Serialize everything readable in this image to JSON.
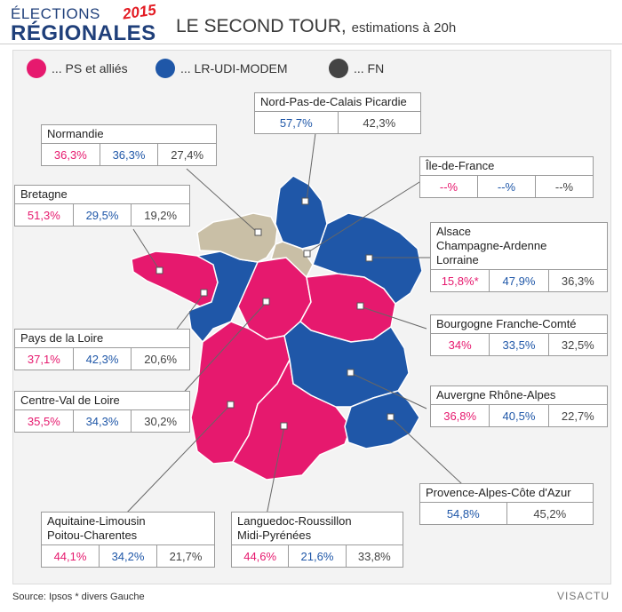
{
  "header": {
    "line1": "ÉLECTIONS",
    "line2": "RÉGIONALES",
    "year": "2015",
    "subtitle_main": "LE SECOND TOUR,",
    "subtitle_small": "estimations à 20h"
  },
  "legend": [
    {
      "label": "... PS et alliés",
      "color": "#e6196e"
    },
    {
      "label": "... LR-UDI-MODEM",
      "color": "#1f57a8"
    },
    {
      "label": "... FN",
      "color": "#444444"
    }
  ],
  "colors": {
    "ps": "#e6196e",
    "lr": "#1f57a8",
    "fn_region": "#c9bfa6",
    "idf": "#c9bfa6"
  },
  "regions": {
    "nord": {
      "name": "Nord-Pas-de-Calais Picardie",
      "values": [
        "57,7%",
        "42,3%"
      ]
    },
    "normandie": {
      "name": "Normandie",
      "values": [
        "36,3%",
        "36,3%",
        "27,4%"
      ]
    },
    "idf": {
      "name": "Île-de-France",
      "values": [
        "--%",
        "--%",
        "--%"
      ]
    },
    "bretagne": {
      "name": "Bretagne",
      "values": [
        "51,3%",
        "29,5%",
        "19,2%"
      ]
    },
    "alsace": {
      "name_l1": "Alsace",
      "name_l2": "Champagne-Ardenne",
      "name_l3": "Lorraine",
      "values": [
        "15,8%*",
        "47,9%",
        "36,3%"
      ]
    },
    "bourgogne": {
      "name": "Bourgogne Franche-Comté",
      "values": [
        "34%",
        "33,5%",
        "32,5%"
      ]
    },
    "pdl": {
      "name": "Pays de la Loire",
      "values": [
        "37,1%",
        "42,3%",
        "20,6%"
      ]
    },
    "auvergne": {
      "name": "Auvergne Rhône-Alpes",
      "values": [
        "36,8%",
        "40,5%",
        "22,7%"
      ]
    },
    "cvl": {
      "name": "Centre-Val de Loire",
      "values": [
        "35,5%",
        "34,3%",
        "30,2%"
      ]
    },
    "paca": {
      "name": "Provence-Alpes-Côte d'Azur",
      "values": [
        "54,8%",
        "45,2%"
      ]
    },
    "aquitaine": {
      "name_l1": "Aquitaine-Limousin",
      "name_l2": "Poitou-Charentes",
      "values": [
        "44,1%",
        "34,2%",
        "21,7%"
      ]
    },
    "languedoc": {
      "name_l1": "Languedoc-Roussillon",
      "name_l2": "Midi-Pyrénées",
      "values": [
        "44,6%",
        "21,6%",
        "33,8%"
      ]
    }
  },
  "footer": {
    "source": "Source: Ipsos   * divers Gauche",
    "brand": "VISACTU"
  }
}
